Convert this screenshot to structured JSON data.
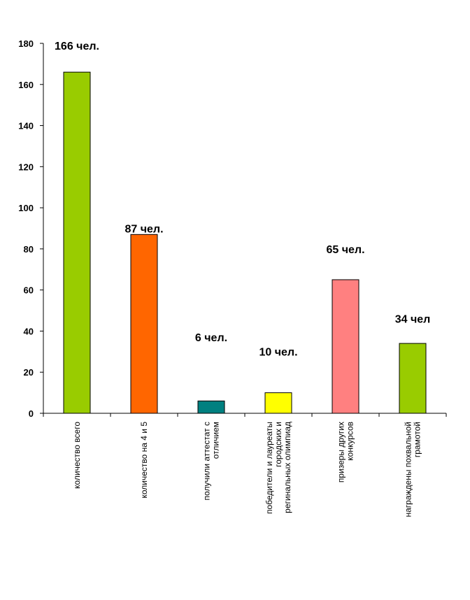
{
  "chart_data": {
    "type": "bar",
    "title": "",
    "xlabel": "",
    "ylabel": "",
    "ylim": [
      0,
      180
    ],
    "yticks": [
      0,
      20,
      40,
      60,
      80,
      100,
      120,
      140,
      160,
      180
    ],
    "grid": false,
    "legend": "none",
    "categories": [
      "количество всего",
      "количество на 4 и 5",
      "получили аттестат с отличием",
      "победители и лауреаты городских и регинальных олимпиад",
      "призеры других конкурсов",
      "награждены похвальной грамотой"
    ],
    "category_lines": [
      [
        "количество всего"
      ],
      [
        "количество на 4 и 5"
      ],
      [
        "получили аттестат с",
        "отличием"
      ],
      [
        "победители и лауреаты",
        "городских и",
        "регинальных олимпиад"
      ],
      [
        "призеры других",
        "конкурсов"
      ],
      [
        "награждены похвальной",
        "грамотой"
      ]
    ],
    "values": [
      166,
      87,
      6,
      10,
      65,
      34
    ],
    "data_labels": [
      "166 чел.",
      "87 чел.",
      "6 чел.",
      "10 чел.",
      "65 чел.",
      "34 чел"
    ],
    "data_label_values": [
      177,
      88,
      35,
      28,
      78,
      44
    ],
    "colors": [
      "#99cc00",
      "#ff6600",
      "#008080",
      "#ffff00",
      "#ff8080",
      "#99cc00"
    ]
  }
}
